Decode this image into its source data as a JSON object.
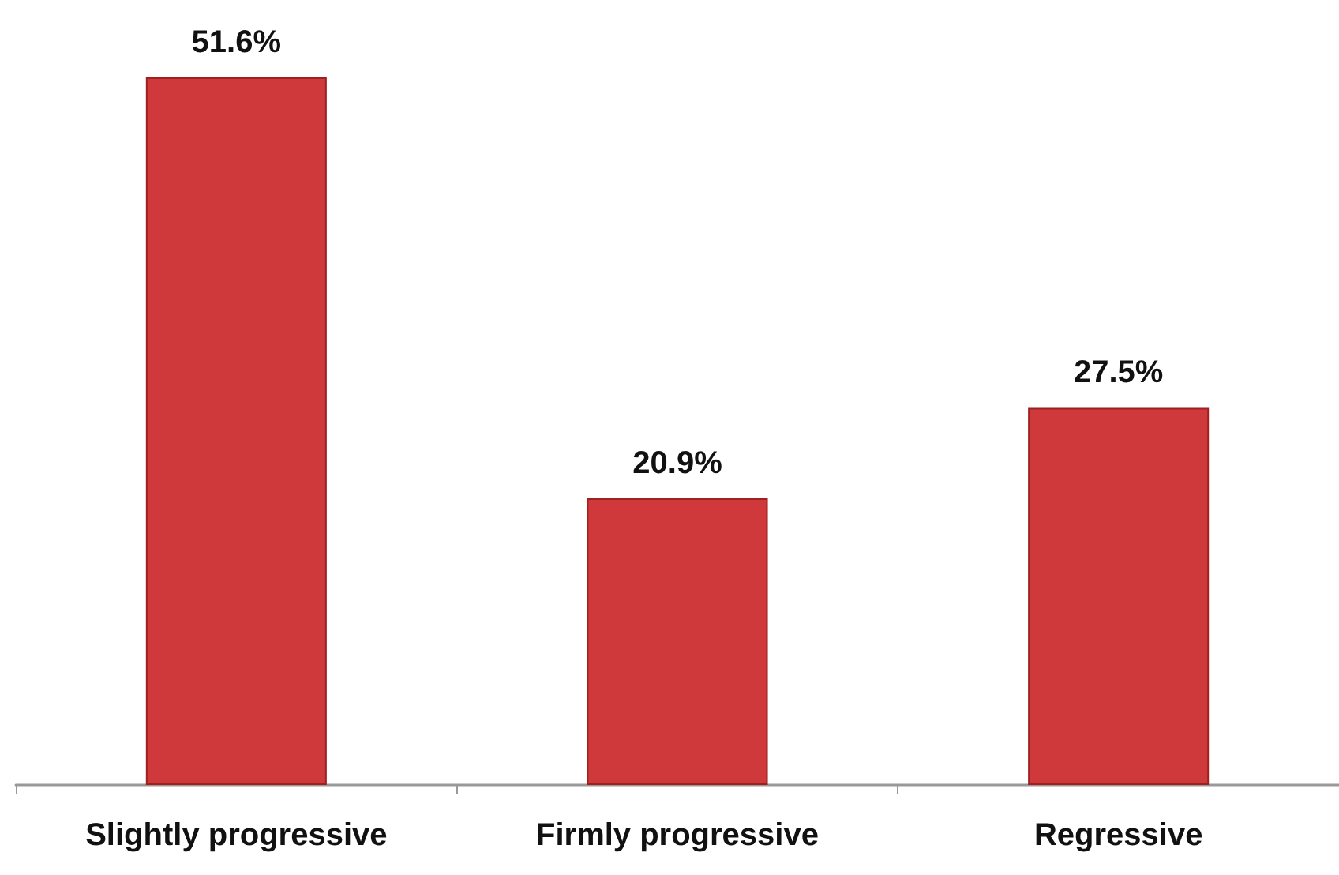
{
  "chart_data": {
    "type": "bar",
    "categories": [
      "Slightly progressive",
      "Firmly progressive",
      "Regressive"
    ],
    "values": [
      51.6,
      20.9,
      27.5
    ],
    "value_labels": [
      "51.6%",
      "20.9%",
      "27.5%"
    ],
    "color": "#d0393b"
  }
}
